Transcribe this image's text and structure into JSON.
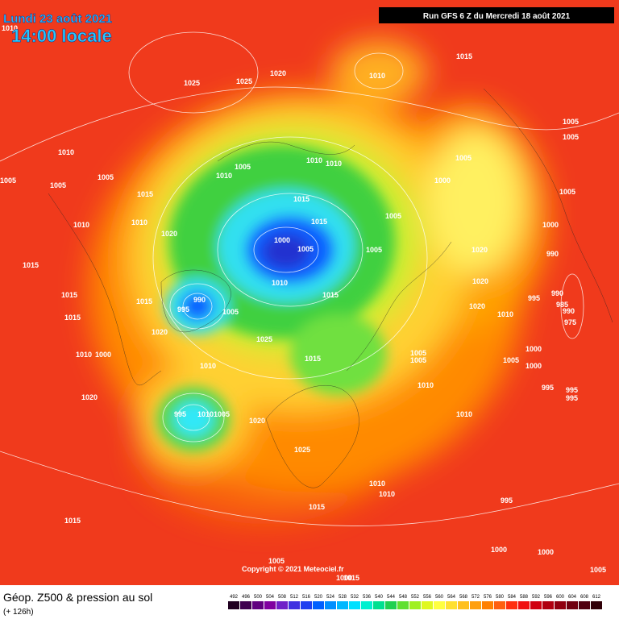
{
  "header": {
    "date": "Lundi 23 août 2021",
    "time": "14:00 locale",
    "run": "Run GFS 6 Z du Mercredi 18 août 2021"
  },
  "map": {
    "isobar_labels": [
      1010,
      1015,
      1025,
      1025,
      1020,
      1010,
      1005,
      1005,
      1010,
      1005,
      1005,
      1005,
      1010,
      1005,
      1010,
      1010,
      1005,
      1000,
      1005,
      1015,
      1015,
      1005,
      1010,
      1010,
      1015,
      1000,
      1020,
      1000,
      1005,
      1005,
      1020,
      990,
      1015,
      1010,
      1020,
      990,
      995,
      1005,
      1015,
      995,
      990,
      985,
      1020,
      1015,
      1015,
      1015,
      1010,
      990,
      975,
      1020,
      1025,
      1010,
      1000,
      1015,
      1005,
      1005,
      1000,
      1005,
      1000,
      1010,
      1010,
      995,
      995,
      995,
      1020,
      995,
      1010,
      1005,
      1020,
      1010,
      1025,
      1010,
      1010,
      995,
      1015,
      1015,
      1000,
      1000,
      1005,
      1005,
      1000,
      1015
    ],
    "copyright": "Copyright © 2021 Meteociel.fr"
  },
  "footer": {
    "title": "Géop. Z500 & pression au sol",
    "subtitle": "(+ 126h)"
  },
  "legend": {
    "values": [
      492,
      496,
      500,
      504,
      508,
      512,
      516,
      520,
      524,
      528,
      532,
      536,
      540,
      544,
      548,
      552,
      556,
      560,
      564,
      568,
      572,
      576,
      580,
      584,
      588,
      592,
      596,
      600,
      604,
      608,
      612
    ],
    "colors": [
      "#200020",
      "#400050",
      "#600080",
      "#8000a0",
      "#7020c8",
      "#4030e0",
      "#2040f0",
      "#0060ff",
      "#0090ff",
      "#00b8ff",
      "#00e0ff",
      "#00f0d0",
      "#00e090",
      "#20d050",
      "#60e030",
      "#a0f020",
      "#e0f820",
      "#ffff40",
      "#ffe030",
      "#ffc020",
      "#ffa010",
      "#ff8000",
      "#ff6010",
      "#ff3010",
      "#f01010",
      "#d00010",
      "#b00010",
      "#900010",
      "#700010",
      "#500010",
      "#300008"
    ]
  }
}
